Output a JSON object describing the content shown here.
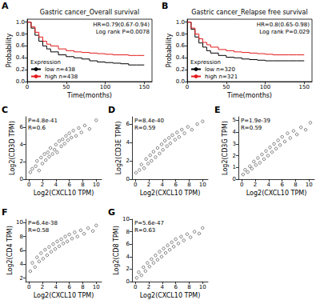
{
  "chart_data": [
    {
      "panel": "A",
      "type": "line",
      "line_style": "step",
      "title": "Gastric cancer_Overall survival",
      "annotations": [
        "HR=0.79(0.67-0.94)",
        "Log rank P=0.0078"
      ],
      "xlabel": "Time(months)",
      "ylabel": "Probability",
      "xlim": [
        0,
        160
      ],
      "ylim": [
        0,
        1.05
      ],
      "xticks": [
        0,
        50,
        100,
        150
      ],
      "yticks": [
        {
          "value": 0,
          "label": "0.0"
        },
        0.2,
        0.4,
        0.6,
        0.8,
        {
          "value": 1,
          "label": "1.0"
        }
      ],
      "grid": false,
      "legend": "bottom-left",
      "legend_title": "Expression",
      "series": [
        {
          "name": "low n=438",
          "color": "#000000",
          "x": [
            0,
            5,
            10,
            15,
            20,
            25,
            30,
            40,
            50,
            60,
            70,
            80,
            90,
            100,
            110,
            120,
            130,
            140,
            150
          ],
          "values": [
            1,
            0.9,
            0.78,
            0.68,
            0.6,
            0.55,
            0.5,
            0.45,
            0.42,
            0.4,
            0.38,
            0.35,
            0.33,
            0.32,
            0.31,
            0.3,
            0.28,
            0.28,
            0.28
          ]
        },
        {
          "name": "high n=438",
          "color": "#e41a1c",
          "x": [
            0,
            5,
            10,
            15,
            20,
            25,
            30,
            40,
            50,
            60,
            70,
            80,
            90,
            100,
            110,
            120,
            130,
            140,
            150
          ],
          "values": [
            1,
            0.92,
            0.83,
            0.75,
            0.68,
            0.63,
            0.6,
            0.55,
            0.52,
            0.5,
            0.49,
            0.48,
            0.47,
            0.46,
            0.45,
            0.45,
            0.44,
            0.44,
            0.44
          ]
        }
      ]
    },
    {
      "panel": "B",
      "type": "line",
      "line_style": "step",
      "title": "Gastric cancer_Relapse free survival",
      "annotations": [
        "HR=0.8(0.65-0.98)",
        "Log rank P=0.029"
      ],
      "xlabel": "Time(months)",
      "ylabel": "Probability",
      "xlim": [
        0,
        160
      ],
      "ylim": [
        0,
        1.05
      ],
      "xticks": [
        0,
        50,
        100,
        150
      ],
      "yticks": [
        {
          "value": 0,
          "label": "0.0"
        },
        0.2,
        0.4,
        0.6,
        0.8,
        {
          "value": 1,
          "label": "1.0"
        }
      ],
      "grid": false,
      "legend": "bottom-left",
      "legend_title": "Expression",
      "series": [
        {
          "name": "low n=320",
          "color": "#000000",
          "x": [
            0,
            5,
            10,
            15,
            20,
            25,
            30,
            40,
            50,
            60,
            70,
            80,
            90,
            100,
            110,
            120,
            130,
            140,
            150
          ],
          "values": [
            1,
            0.88,
            0.75,
            0.65,
            0.58,
            0.52,
            0.48,
            0.44,
            0.41,
            0.4,
            0.38,
            0.37,
            0.36,
            0.35,
            0.35,
            0.35,
            0.35,
            0.35,
            0.35
          ]
        },
        {
          "name": "high n=321",
          "color": "#e41a1c",
          "x": [
            0,
            5,
            10,
            15,
            20,
            25,
            30,
            40,
            50,
            60,
            70,
            80,
            90,
            100,
            110,
            120,
            130,
            140,
            150
          ],
          "values": [
            1,
            0.9,
            0.8,
            0.72,
            0.66,
            0.62,
            0.58,
            0.54,
            0.52,
            0.5,
            0.49,
            0.48,
            0.47,
            0.46,
            0.45,
            0.45,
            0.45,
            0.45,
            0.45
          ]
        }
      ]
    },
    {
      "panel": "C",
      "type": "scatter",
      "marker": "circle",
      "color": "#222222",
      "annotations": [
        "P=4.8e-41",
        "R=0.6"
      ],
      "xlabel": "Log2(CXCL10 TPM)",
      "ylabel": "Log2(CD3D TPM)",
      "xlim": [
        -0.5,
        10.8
      ],
      "ylim": [
        0,
        7.2
      ],
      "xticks": [
        0,
        2,
        4,
        6,
        8,
        10
      ],
      "yticks": [
        0,
        2,
        4,
        6
      ],
      "grid": false,
      "x": [
        0.2,
        0.5,
        1,
        1.2,
        1.5,
        1.8,
        2,
        2.3,
        2.5,
        2.8,
        3,
        3.2,
        3.5,
        3.8,
        4,
        4.2,
        4.5,
        4.8,
        5,
        5.3,
        5.5,
        5.8,
        6,
        6.3,
        6.6,
        7,
        7.4,
        7.8,
        8.3,
        9,
        10
      ],
      "values": [
        0.8,
        1.2,
        1.5,
        2.1,
        1.0,
        2.5,
        1.8,
        2.9,
        2.2,
        3.1,
        2.6,
        3.6,
        2.9,
        3.4,
        4.0,
        3.1,
        4.4,
        3.8,
        4.6,
        4.1,
        5.0,
        4.5,
        5.3,
        4.8,
        5.6,
        5.0,
        5.9,
        5.4,
        6.2,
        5.8,
        6.8
      ]
    },
    {
      "panel": "D",
      "type": "scatter",
      "marker": "circle",
      "color": "#222222",
      "annotations": [
        "P=8.4e-40",
        "R=0.59"
      ],
      "xlabel": "Log2(CXCL10 TPM)",
      "ylabel": "Log2(CD3E TPM)",
      "xlim": [
        -0.5,
        10.8
      ],
      "ylim": [
        0,
        6.8
      ],
      "xticks": [
        0,
        2,
        4,
        6,
        8,
        10
      ],
      "yticks": [
        0,
        2,
        4,
        6
      ],
      "grid": false,
      "x": [
        0.1,
        0.6,
        0.9,
        1.3,
        1.6,
        1.9,
        2.2,
        2.4,
        2.7,
        3,
        3.3,
        3.6,
        3.9,
        4.1,
        4.4,
        4.7,
        5,
        5.2,
        5.5,
        5.9,
        6.2,
        6.5,
        6.9,
        7.3,
        7.8,
        8.4,
        9.2,
        10
      ],
      "values": [
        0.7,
        1.0,
        1.6,
        1.2,
        2.2,
        1.7,
        2.6,
        2.0,
        3.0,
        2.4,
        3.4,
        2.8,
        3.8,
        3.2,
        4.2,
        3.6,
        4.5,
        3.9,
        4.8,
        4.3,
        5.1,
        4.6,
        5.4,
        5.0,
        5.7,
        5.4,
        6.0,
        6.3
      ]
    },
    {
      "panel": "E",
      "type": "scatter",
      "marker": "circle",
      "color": "#222222",
      "annotations": [
        "P=1.9e-39",
        "R=0.59"
      ],
      "xlabel": "Log2(CXCL10 TPM)",
      "ylabel": "Log2(CD3G TPM)",
      "xlim": [
        -0.5,
        10.8
      ],
      "ylim": [
        0,
        5.3
      ],
      "xticks": [
        0,
        2,
        4,
        6,
        8,
        10
      ],
      "yticks": [
        0,
        1,
        2,
        3,
        4,
        5
      ],
      "grid": false,
      "x": [
        0.2,
        0.5,
        0.9,
        1.2,
        1.5,
        1.8,
        2.1,
        2.4,
        2.7,
        3,
        3.3,
        3.6,
        3.9,
        4.2,
        4.5,
        4.8,
        5.1,
        5.4,
        5.7,
        6,
        6.4,
        6.8,
        7.2,
        7.7,
        8.2,
        8.8,
        9.5,
        10.2
      ],
      "values": [
        0.4,
        0.8,
        0.6,
        1.1,
        0.9,
        1.5,
        1.2,
        1.8,
        1.4,
        2.1,
        1.7,
        2.4,
        2.0,
        2.7,
        2.3,
        3.0,
        2.6,
        3.3,
        2.9,
        3.6,
        3.2,
        3.9,
        3.5,
        4.1,
        3.8,
        4.4,
        4.2,
        4.8
      ]
    },
    {
      "panel": "F",
      "type": "scatter",
      "marker": "circle",
      "color": "#222222",
      "annotations": [
        "P=6.4e-38",
        "R=0.58"
      ],
      "xlabel": "Log2(CXCL10 TPM)",
      "ylabel": "Log2(CD4 TPM)",
      "xlim": [
        -0.5,
        10.8
      ],
      "ylim": [
        1.5,
        10.5
      ],
      "xticks": [
        0,
        2,
        4,
        6,
        8,
        10
      ],
      "yticks": [
        2,
        4,
        6,
        8,
        10
      ],
      "grid": false,
      "x": [
        0.2,
        0.5,
        0.9,
        1.2,
        1.5,
        1.8,
        2.1,
        2.4,
        2.7,
        3,
        3.3,
        3.6,
        3.9,
        4.2,
        4.5,
        4.8,
        5.1,
        5.4,
        5.7,
        6,
        6.4,
        6.8,
        7.2,
        7.7,
        8.2,
        8.8,
        9.5,
        10
      ],
      "values": [
        3.0,
        4.2,
        3.6,
        5.0,
        4.4,
        5.6,
        4.8,
        6.1,
        5.3,
        6.5,
        5.8,
        6.9,
        6.2,
        7.3,
        6.6,
        7.6,
        7.0,
        8.0,
        7.3,
        8.3,
        7.7,
        8.6,
        8.0,
        8.9,
        8.4,
        9.2,
        8.8,
        9.6
      ]
    },
    {
      "panel": "G",
      "type": "scatter",
      "marker": "circle",
      "color": "#222222",
      "annotations": [
        "P=5.6e-47",
        "R=0.63"
      ],
      "xlabel": "Log2(CXCL10 TPM)",
      "ylabel": "Log2(CD8 TPM)",
      "xlim": [
        -0.5,
        10.8
      ],
      "ylim": [
        0,
        10
      ],
      "xticks": [
        0,
        2,
        4,
        6,
        8,
        10
      ],
      "yticks": [
        0,
        2,
        4,
        6,
        8,
        10
      ],
      "grid": false,
      "x": [
        0.2,
        0.5,
        0.9,
        1.2,
        1.5,
        1.8,
        2.1,
        2.4,
        2.7,
        3,
        3.3,
        3.6,
        3.9,
        4.2,
        4.5,
        4.8,
        5.1,
        5.4,
        5.7,
        6,
        6.4,
        6.8,
        7.2,
        7.7,
        8.2,
        8.8,
        9.5,
        10
      ],
      "values": [
        0.6,
        1.5,
        1.0,
        2.3,
        1.7,
        3.0,
        2.4,
        3.6,
        3.0,
        4.2,
        3.5,
        4.8,
        4.0,
        5.3,
        4.6,
        5.8,
        5.1,
        6.3,
        5.6,
        6.8,
        6.1,
        7.2,
        6.6,
        7.6,
        7.1,
        8.0,
        7.7,
        8.6
      ]
    }
  ]
}
